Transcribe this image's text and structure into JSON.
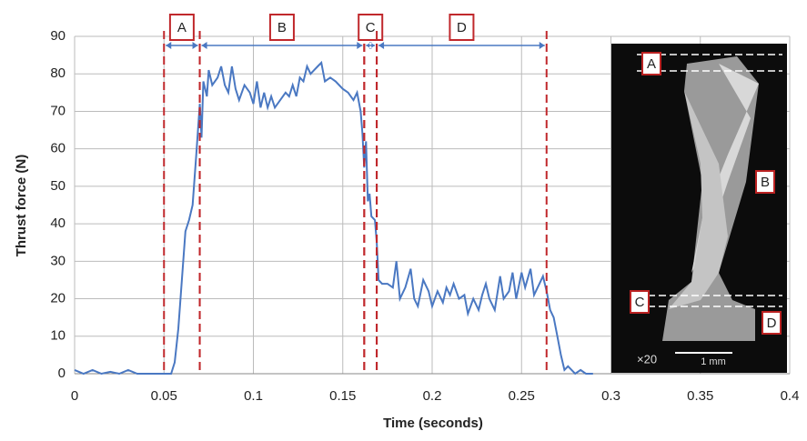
{
  "chart_data": {
    "type": "line",
    "xlabel": "Time (seconds)",
    "ylabel": "Thrust force (N)",
    "color": "#4a78c2",
    "x": [
      0,
      0.005,
      0.01,
      0.015,
      0.02,
      0.025,
      0.03,
      0.035,
      0.04,
      0.05,
      0.054,
      0.056,
      0.058,
      0.06,
      0.062,
      0.064,
      0.066,
      0.068,
      0.069,
      0.07,
      0.071,
      0.072,
      0.074,
      0.075,
      0.077,
      0.08,
      0.082,
      0.084,
      0.086,
      0.088,
      0.09,
      0.092,
      0.095,
      0.098,
      0.1,
      0.102,
      0.104,
      0.106,
      0.108,
      0.11,
      0.112,
      0.115,
      0.118,
      0.12,
      0.122,
      0.124,
      0.126,
      0.128,
      0.13,
      0.132,
      0.134,
      0.136,
      0.138,
      0.14,
      0.143,
      0.146,
      0.15,
      0.153,
      0.156,
      0.158,
      0.16,
      0.161,
      0.162,
      0.163,
      0.164,
      0.165,
      0.166,
      0.168,
      0.169,
      0.17,
      0.172,
      0.175,
      0.178,
      0.18,
      0.182,
      0.185,
      0.188,
      0.19,
      0.192,
      0.195,
      0.198,
      0.2,
      0.203,
      0.206,
      0.208,
      0.21,
      0.212,
      0.215,
      0.218,
      0.22,
      0.223,
      0.226,
      0.228,
      0.23,
      0.232,
      0.235,
      0.238,
      0.24,
      0.243,
      0.245,
      0.247,
      0.25,
      0.252,
      0.255,
      0.257,
      0.26,
      0.262,
      0.264,
      0.266,
      0.268,
      0.27,
      0.272,
      0.274,
      0.276,
      0.28,
      0.283,
      0.286,
      0.29
    ],
    "values": [
      1,
      0,
      1,
      0,
      0.5,
      0,
      1,
      0,
      0,
      0,
      0,
      3,
      12,
      25,
      38,
      41,
      45,
      58,
      65,
      72,
      63,
      78,
      74,
      81,
      77,
      79,
      82,
      77,
      75,
      82,
      76,
      73,
      77,
      75,
      72,
      78,
      71,
      75,
      71,
      74,
      71,
      73,
      75,
      74,
      77,
      74,
      79,
      78,
      82,
      80,
      81,
      82,
      83,
      78,
      79,
      78,
      76,
      75,
      73,
      75,
      70,
      64,
      55,
      62,
      46,
      48,
      42,
      41,
      35,
      25,
      24,
      24,
      23,
      30,
      20,
      23,
      28,
      20,
      18,
      25,
      22,
      18,
      22,
      19,
      23,
      21,
      24,
      20,
      21,
      16,
      20,
      17,
      21,
      24,
      20,
      17,
      26,
      20,
      22,
      27,
      20,
      27,
      23,
      28,
      21,
      24,
      26,
      22,
      17,
      15,
      10,
      5,
      1,
      2,
      0,
      1,
      0,
      0
    ],
    "xlim": [
      0,
      0.4
    ],
    "xticks": [
      0,
      0.05,
      0.1,
      0.15,
      0.2,
      0.25,
      0.3,
      0.35,
      0.4
    ],
    "ylim": [
      0,
      90
    ],
    "yticks": [
      0,
      10,
      20,
      30,
      40,
      50,
      60,
      70,
      80,
      90
    ],
    "grid": true,
    "regions": [
      {
        "label": "A",
        "start": 0.05,
        "end": 0.07
      },
      {
        "label": "B",
        "start": 0.07,
        "end": 0.162
      },
      {
        "label": "C",
        "start": 0.162,
        "end": 0.169
      },
      {
        "label": "D",
        "start": 0.169,
        "end": 0.264
      }
    ],
    "inset": {
      "labels": [
        "A",
        "B",
        "C",
        "D"
      ],
      "magnification": "×20",
      "scale_bar": "1 mm"
    }
  }
}
